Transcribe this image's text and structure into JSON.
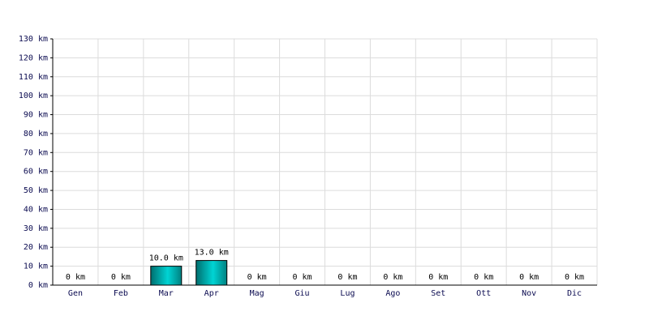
{
  "chart_data": {
    "type": "bar",
    "categories": [
      "Gen",
      "Feb",
      "Mar",
      "Apr",
      "Mag",
      "Giu",
      "Lug",
      "Ago",
      "Set",
      "Ott",
      "Nov",
      "Dic"
    ],
    "values": [
      0,
      0,
      10,
      13,
      0,
      0,
      0,
      0,
      0,
      0,
      0,
      0
    ],
    "value_labels": [
      "0 km",
      "0 km",
      "10.0 km",
      "13.0 km",
      "0 km",
      "0 km",
      "0 km",
      "0 km",
      "0 km",
      "0 km",
      "0 km",
      "0 km"
    ],
    "color": "#00d4d4",
    "ylim": [
      0,
      130
    ],
    "yticks": [
      {
        "value": 0,
        "label": "0 km"
      },
      {
        "value": 10,
        "label": "10 km"
      },
      {
        "value": 20,
        "label": "20 km"
      },
      {
        "value": 30,
        "label": "30 km"
      },
      {
        "value": 40,
        "label": "40 km"
      },
      {
        "value": 50,
        "label": "50 km"
      },
      {
        "value": 60,
        "label": "60 km"
      },
      {
        "value": 70,
        "label": "70 km"
      },
      {
        "value": 80,
        "label": "80 km"
      },
      {
        "value": 90,
        "label": "90 km"
      },
      {
        "value": 100,
        "label": "100 km"
      },
      {
        "value": 110,
        "label": "110 km"
      },
      {
        "value": 120,
        "label": "120 km"
      },
      {
        "value": 130,
        "label": "130 km"
      }
    ],
    "grid": true
  }
}
